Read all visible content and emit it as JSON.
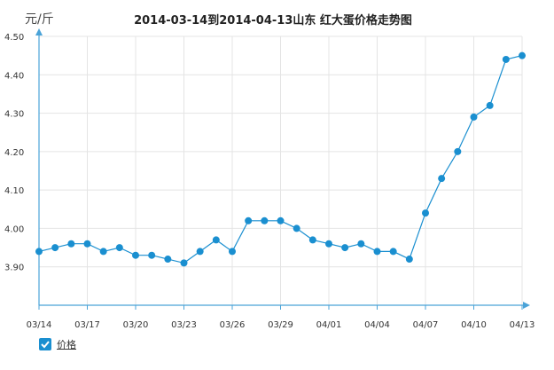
{
  "chart_data": {
    "type": "line",
    "title": "2014-03-14到2014-04-13山东  红大蛋价格走势图",
    "ylabel": "元/斤",
    "ylim": [
      3.8,
      4.5
    ],
    "yticks": [
      "4.50",
      "4.40",
      "4.30",
      "4.20",
      "4.10",
      "4.00",
      "3.90"
    ],
    "xticks": [
      "03/14",
      "03/17",
      "03/20",
      "03/23",
      "03/26",
      "03/29",
      "04/01",
      "04/04",
      "04/07",
      "04/10",
      "04/13"
    ],
    "x": [
      "03/14",
      "03/15",
      "03/16",
      "03/17",
      "03/18",
      "03/19",
      "03/20",
      "03/21",
      "03/22",
      "03/23",
      "03/24",
      "03/25",
      "03/26",
      "03/27",
      "03/28",
      "03/29",
      "03/30",
      "03/31",
      "04/01",
      "04/02",
      "04/03",
      "04/04",
      "04/05",
      "04/06",
      "04/07",
      "04/08",
      "04/09",
      "04/10",
      "04/11",
      "04/12",
      "04/13"
    ],
    "series": [
      {
        "name": "价格",
        "color": "#1a8fd0",
        "values": [
          3.94,
          3.95,
          3.96,
          3.96,
          3.94,
          3.95,
          3.93,
          3.93,
          3.92,
          3.91,
          3.94,
          3.97,
          3.94,
          4.02,
          4.02,
          4.02,
          4.0,
          3.97,
          3.96,
          3.95,
          3.96,
          3.94,
          3.94,
          3.92,
          4.04,
          4.13,
          4.2,
          4.29,
          4.32,
          4.44,
          4.45
        ]
      }
    ],
    "grid": true,
    "legend_position": "bottom-left"
  },
  "legend": {
    "label": "价格",
    "check_icon": "check-icon"
  }
}
